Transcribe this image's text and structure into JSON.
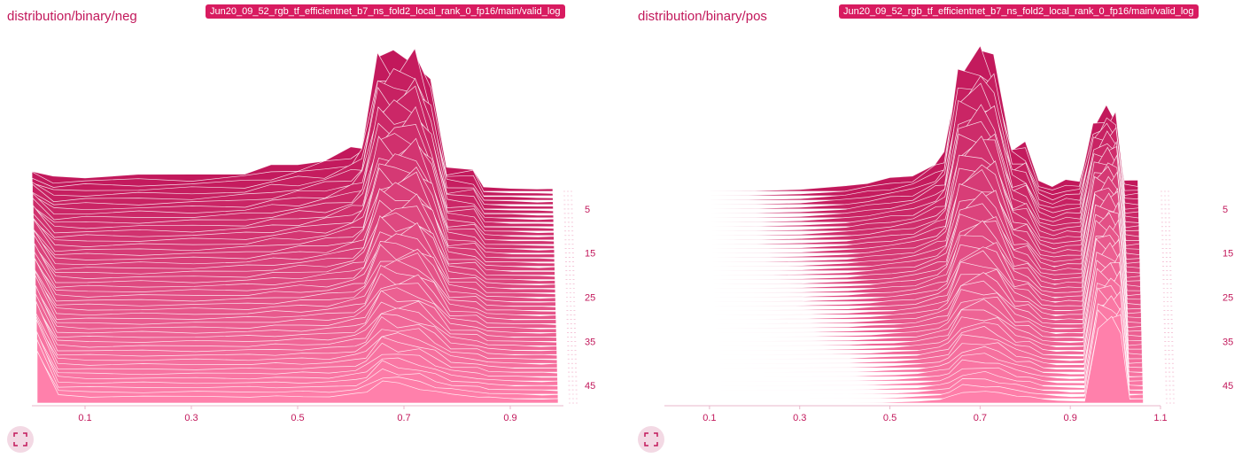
{
  "colors": {
    "accent": "#c2185b",
    "badge": "#d81b60",
    "front": "#ff80ab",
    "back": "#c2185b"
  },
  "cards": [
    {
      "title": "distribution/binary/neg",
      "run": "Jun20_09_52_rgb_tf_efficientnet_b7_ns_fold2_local_rank_0_fp16/main/valid_log",
      "expand_icon": "expand-icon"
    },
    {
      "title": "distribution/binary/pos",
      "run": "Jun20_09_52_rgb_tf_efficientnet_b7_ns_fold2_local_rank_0_fp16/main/valid_log",
      "expand_icon": "expand-icon"
    }
  ],
  "chart_data": [
    {
      "type": "area",
      "series_count": 49,
      "xlim": [
        0,
        1
      ],
      "x_ticks": [
        "0.1",
        "0.3",
        "0.5",
        "0.7",
        "0.9"
      ],
      "step_ticks": [
        "5",
        "15",
        "25",
        "35",
        "45"
      ],
      "x": [
        0,
        0.04,
        0.1,
        0.2,
        0.3,
        0.4,
        0.45,
        0.5,
        0.55,
        0.6,
        0.62,
        0.65,
        0.68,
        0.72,
        0.75,
        0.78,
        0.83,
        0.85,
        0.9,
        0.95,
        0.98
      ],
      "profile_first": [
        0.5,
        0.35,
        0.38,
        0.4,
        0.42,
        0.48,
        0.6,
        0.7,
        0.8,
        1.0,
        1.2,
        3.3,
        3.3,
        3.6,
        2.6,
        0.6,
        0.6,
        0.1,
        0.08,
        0.06,
        0.06
      ],
      "profile_last": [
        2.4,
        0.35,
        0.3,
        0.3,
        0.3,
        0.3,
        0.3,
        0.3,
        0.3,
        0.4,
        0.55,
        1.0,
        0.85,
        0.7,
        0.5,
        0.4,
        0.3,
        0.25,
        0.2,
        0.18,
        0.18
      ]
    },
    {
      "type": "area",
      "series_count": 49,
      "xlim": [
        0,
        1.1
      ],
      "x_ticks": [
        "0.1",
        "0.3",
        "0.5",
        "0.7",
        "0.9",
        "1.1"
      ],
      "step_ticks": [
        "5",
        "15",
        "25",
        "35",
        "45"
      ],
      "x": [
        0,
        0.1,
        0.2,
        0.3,
        0.4,
        0.45,
        0.5,
        0.55,
        0.6,
        0.62,
        0.65,
        0.7,
        0.73,
        0.77,
        0.8,
        0.83,
        0.86,
        0.89,
        0.92,
        0.95,
        0.98,
        1.0,
        1.02,
        1.05
      ],
      "profile_first": [
        0,
        0,
        0.02,
        0.05,
        0.15,
        0.25,
        0.35,
        0.45,
        0.8,
        1.0,
        3.5,
        3.9,
        3.6,
        1.3,
        1.3,
        0.3,
        0.15,
        0.3,
        0.3,
        1.8,
        2.2,
        2.2,
        0.3,
        0.3
      ],
      "profile_last": [
        0,
        0,
        0,
        0,
        0,
        0.02,
        0.05,
        0.1,
        0.2,
        0.3,
        0.6,
        0.6,
        0.5,
        0.4,
        0.3,
        0.2,
        0.15,
        0.1,
        0.1,
        4.0,
        4.0,
        4.0,
        0.2,
        0.2
      ]
    }
  ]
}
